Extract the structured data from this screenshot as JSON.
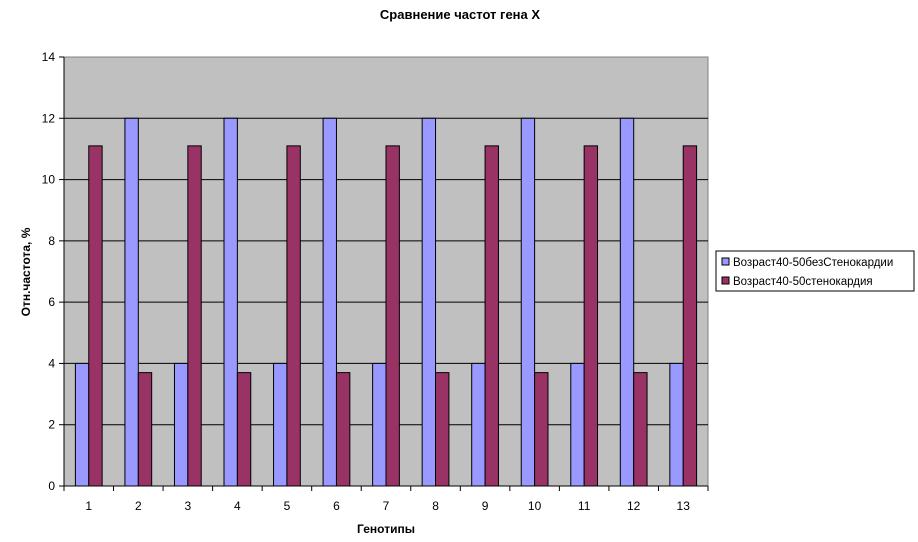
{
  "chart_data": {
    "type": "bar",
    "title": "Сравнение частот гена Х",
    "xlabel": "Генотипы",
    "ylabel": "Отн.частота, %",
    "categories": [
      "1",
      "2",
      "3",
      "4",
      "5",
      "6",
      "7",
      "8",
      "9",
      "10",
      "11",
      "12",
      "13"
    ],
    "ylim": [
      0,
      14
    ],
    "yticks": [
      0,
      2,
      4,
      6,
      8,
      10,
      12,
      14
    ],
    "grid": true,
    "legend_position": "right",
    "series": [
      {
        "name": "Возраст40-50безСтенокардии",
        "color": "#9999ff",
        "values": [
          4,
          12,
          4,
          12,
          4,
          12,
          4,
          12,
          4,
          12,
          4,
          12,
          4
        ]
      },
      {
        "name": "Возраст40-50стенокардия",
        "color": "#993366",
        "values": [
          11.1,
          3.7,
          11.1,
          3.7,
          11.1,
          3.7,
          11.1,
          3.7,
          11.1,
          3.7,
          11.1,
          3.7,
          11.1
        ]
      }
    ],
    "plot_background": "#c0c0c0"
  }
}
